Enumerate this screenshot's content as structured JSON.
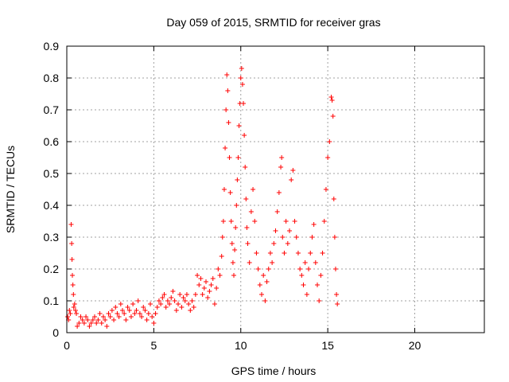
{
  "chart_data": {
    "type": "scatter",
    "title": "Day 059 of 2015, SRMTID for receiver gras",
    "xlabel": "GPS time / hours",
    "ylabel": "SRMTID / TECUs",
    "xlim": [
      0,
      24
    ],
    "ylim": [
      0,
      0.9
    ],
    "xticks": [
      0,
      5,
      10,
      15,
      20
    ],
    "xtick_labels": [
      "0",
      "5",
      "10",
      "15",
      "20"
    ],
    "yticks": [
      0,
      0.1,
      0.2,
      0.3,
      0.4,
      0.5,
      0.6,
      0.7,
      0.8,
      0.9
    ],
    "ytick_labels": [
      "0",
      "0.1",
      "0.2",
      "0.3",
      "0.4",
      "0.5",
      "0.6",
      "0.7",
      "0.8",
      "0.9"
    ],
    "grid": true,
    "marker": "+",
    "series": [
      {
        "name": "SRMTID",
        "color": "#ff0000",
        "points": [
          [
            0.05,
            0.05
          ],
          [
            0.1,
            0.04
          ],
          [
            0.15,
            0.07
          ],
          [
            0.2,
            0.06
          ],
          [
            0.25,
            0.34
          ],
          [
            0.28,
            0.28
          ],
          [
            0.3,
            0.23
          ],
          [
            0.32,
            0.18
          ],
          [
            0.35,
            0.15
          ],
          [
            0.38,
            0.12
          ],
          [
            0.4,
            0.08
          ],
          [
            0.45,
            0.09
          ],
          [
            0.5,
            0.07
          ],
          [
            0.55,
            0.06
          ],
          [
            0.6,
            0.02
          ],
          [
            0.7,
            0.03
          ],
          [
            0.8,
            0.05
          ],
          [
            0.9,
            0.04
          ],
          [
            1.0,
            0.03
          ],
          [
            1.1,
            0.05
          ],
          [
            1.2,
            0.04
          ],
          [
            1.3,
            0.02
          ],
          [
            1.4,
            0.03
          ],
          [
            1.5,
            0.04
          ],
          [
            1.6,
            0.05
          ],
          [
            1.7,
            0.03
          ],
          [
            1.8,
            0.04
          ],
          [
            1.9,
            0.06
          ],
          [
            2.0,
            0.03
          ],
          [
            2.1,
            0.05
          ],
          [
            2.2,
            0.04
          ],
          [
            2.3,
            0.02
          ],
          [
            2.4,
            0.06
          ],
          [
            2.5,
            0.05
          ],
          [
            2.6,
            0.07
          ],
          [
            2.7,
            0.04
          ],
          [
            2.8,
            0.08
          ],
          [
            2.9,
            0.06
          ],
          [
            3.0,
            0.05
          ],
          [
            3.1,
            0.09
          ],
          [
            3.2,
            0.07
          ],
          [
            3.3,
            0.06
          ],
          [
            3.4,
            0.04
          ],
          [
            3.5,
            0.08
          ],
          [
            3.6,
            0.07
          ],
          [
            3.7,
            0.05
          ],
          [
            3.8,
            0.09
          ],
          [
            3.9,
            0.06
          ],
          [
            4.0,
            0.07
          ],
          [
            4.1,
            0.1
          ],
          [
            4.2,
            0.06
          ],
          [
            4.3,
            0.05
          ],
          [
            4.4,
            0.08
          ],
          [
            4.5,
            0.07
          ],
          [
            4.6,
            0.04
          ],
          [
            4.7,
            0.06
          ],
          [
            4.8,
            0.09
          ],
          [
            4.9,
            0.05
          ],
          [
            5.0,
            0.03
          ],
          [
            5.1,
            0.06
          ],
          [
            5.2,
            0.08
          ],
          [
            5.3,
            0.1
          ],
          [
            5.4,
            0.09
          ],
          [
            5.5,
            0.11
          ],
          [
            5.6,
            0.12
          ],
          [
            5.7,
            0.08
          ],
          [
            5.8,
            0.1
          ],
          [
            5.9,
            0.09
          ],
          [
            6.0,
            0.11
          ],
          [
            6.1,
            0.13
          ],
          [
            6.2,
            0.1
          ],
          [
            6.3,
            0.07
          ],
          [
            6.4,
            0.09
          ],
          [
            6.5,
            0.12
          ],
          [
            6.6,
            0.08
          ],
          [
            6.7,
            0.11
          ],
          [
            6.8,
            0.1
          ],
          [
            6.9,
            0.12
          ],
          [
            7.0,
            0.09
          ],
          [
            7.1,
            0.07
          ],
          [
            7.2,
            0.1
          ],
          [
            7.3,
            0.08
          ],
          [
            7.4,
            0.12
          ],
          [
            7.5,
            0.18
          ],
          [
            7.6,
            0.15
          ],
          [
            7.7,
            0.17
          ],
          [
            7.8,
            0.12
          ],
          [
            7.9,
            0.14
          ],
          [
            8.0,
            0.16
          ],
          [
            8.1,
            0.11
          ],
          [
            8.2,
            0.13
          ],
          [
            8.3,
            0.15
          ],
          [
            8.4,
            0.17
          ],
          [
            8.5,
            0.09
          ],
          [
            8.6,
            0.14
          ],
          [
            8.7,
            0.2
          ],
          [
            8.8,
            0.18
          ],
          [
            8.9,
            0.24
          ],
          [
            8.95,
            0.3
          ],
          [
            9.0,
            0.35
          ],
          [
            9.05,
            0.45
          ],
          [
            9.1,
            0.58
          ],
          [
            9.15,
            0.7
          ],
          [
            9.2,
            0.81
          ],
          [
            9.25,
            0.76
          ],
          [
            9.3,
            0.66
          ],
          [
            9.35,
            0.55
          ],
          [
            9.4,
            0.44
          ],
          [
            9.45,
            0.35
          ],
          [
            9.5,
            0.28
          ],
          [
            9.55,
            0.22
          ],
          [
            9.6,
            0.18
          ],
          [
            9.65,
            0.26
          ],
          [
            9.7,
            0.33
          ],
          [
            9.75,
            0.4
          ],
          [
            9.8,
            0.48
          ],
          [
            9.85,
            0.55
          ],
          [
            9.9,
            0.65
          ],
          [
            9.95,
            0.72
          ],
          [
            10.0,
            0.8
          ],
          [
            10.05,
            0.83
          ],
          [
            10.1,
            0.78
          ],
          [
            10.15,
            0.72
          ],
          [
            10.2,
            0.62
          ],
          [
            10.25,
            0.52
          ],
          [
            10.3,
            0.42
          ],
          [
            10.35,
            0.33
          ],
          [
            10.4,
            0.28
          ],
          [
            10.5,
            0.22
          ],
          [
            10.6,
            0.38
          ],
          [
            10.7,
            0.45
          ],
          [
            10.8,
            0.35
          ],
          [
            10.9,
            0.25
          ],
          [
            11.0,
            0.2
          ],
          [
            11.1,
            0.15
          ],
          [
            11.2,
            0.12
          ],
          [
            11.3,
            0.18
          ],
          [
            11.4,
            0.1
          ],
          [
            11.5,
            0.16
          ],
          [
            11.6,
            0.2
          ],
          [
            11.7,
            0.25
          ],
          [
            11.8,
            0.22
          ],
          [
            11.9,
            0.28
          ],
          [
            12.0,
            0.32
          ],
          [
            12.1,
            0.38
          ],
          [
            12.2,
            0.44
          ],
          [
            12.3,
            0.52
          ],
          [
            12.35,
            0.55
          ],
          [
            12.4,
            0.3
          ],
          [
            12.5,
            0.25
          ],
          [
            12.6,
            0.35
          ],
          [
            12.7,
            0.28
          ],
          [
            12.8,
            0.32
          ],
          [
            12.9,
            0.48
          ],
          [
            13.0,
            0.51
          ],
          [
            13.1,
            0.35
          ],
          [
            13.2,
            0.3
          ],
          [
            13.3,
            0.25
          ],
          [
            13.4,
            0.2
          ],
          [
            13.5,
            0.18
          ],
          [
            13.6,
            0.15
          ],
          [
            13.7,
            0.22
          ],
          [
            13.8,
            0.12
          ],
          [
            13.9,
            0.2
          ],
          [
            14.0,
            0.25
          ],
          [
            14.1,
            0.3
          ],
          [
            14.2,
            0.34
          ],
          [
            14.3,
            0.22
          ],
          [
            14.4,
            0.15
          ],
          [
            14.5,
            0.1
          ],
          [
            14.6,
            0.18
          ],
          [
            14.7,
            0.25
          ],
          [
            14.8,
            0.35
          ],
          [
            14.9,
            0.45
          ],
          [
            15.0,
            0.55
          ],
          [
            15.1,
            0.6
          ],
          [
            15.2,
            0.74
          ],
          [
            15.25,
            0.73
          ],
          [
            15.3,
            0.68
          ],
          [
            15.35,
            0.42
          ],
          [
            15.4,
            0.3
          ],
          [
            15.45,
            0.2
          ],
          [
            15.5,
            0.12
          ],
          [
            15.55,
            0.09
          ]
        ]
      }
    ]
  }
}
